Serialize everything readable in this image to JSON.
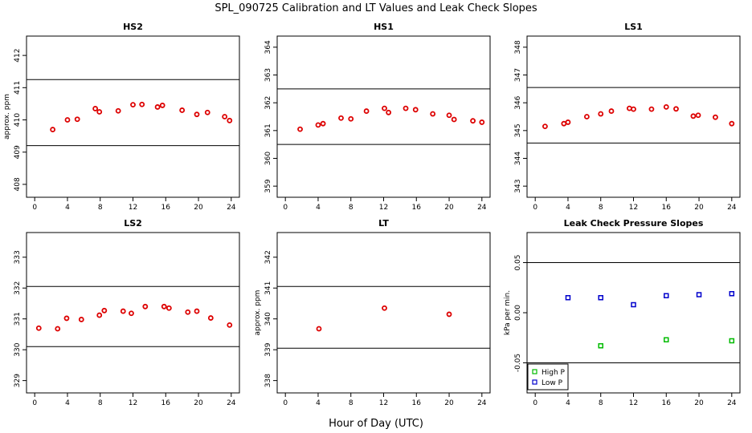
{
  "figure": {
    "title": "SPL_090725  Calibration and LT Values and Leak Check Slopes",
    "xlabel": "Hour of Day (UTC)"
  },
  "chart_data": [
    {
      "type": "scatter",
      "title": "HS2",
      "ylabel": "approx. ppm",
      "xlim": [
        -1,
        25
      ],
      "ylim": [
        407.6,
        412.6
      ],
      "xticks": [
        0,
        4,
        8,
        12,
        16,
        20,
        24
      ],
      "yticks": [
        408,
        409,
        410,
        411,
        412
      ],
      "hlines": [
        409.2,
        411.25
      ],
      "series": [
        {
          "color": "#dd0000",
          "marker": "circle",
          "x": [
            2.2,
            4,
            5.2,
            7.4,
            7.9,
            10.2,
            12,
            13.1,
            15,
            15.6,
            18,
            19.8,
            21.1,
            23.2,
            23.8
          ],
          "y": [
            409.7,
            410.0,
            410.02,
            410.35,
            410.25,
            410.28,
            410.47,
            410.48,
            410.4,
            410.45,
            410.3,
            410.17,
            410.23,
            410.1,
            409.98
          ]
        }
      ]
    },
    {
      "type": "scatter",
      "title": "HS1",
      "ylabel": "",
      "xlim": [
        -1,
        25
      ],
      "ylim": [
        358.6,
        364.4
      ],
      "xticks": [
        0,
        4,
        8,
        12,
        16,
        20,
        24
      ],
      "yticks": [
        359,
        360,
        361,
        362,
        363,
        364
      ],
      "hlines": [
        360.5,
        362.5
      ],
      "series": [
        {
          "color": "#dd0000",
          "marker": "circle",
          "x": [
            1.8,
            4,
            4.6,
            6.8,
            8,
            9.9,
            12.1,
            12.6,
            14.7,
            15.9,
            18,
            20,
            20.6,
            22.9,
            24
          ],
          "y": [
            361.05,
            361.2,
            361.25,
            361.45,
            361.42,
            361.7,
            361.8,
            361.65,
            361.8,
            361.75,
            361.6,
            361.55,
            361.4,
            361.35,
            361.3
          ]
        }
      ]
    },
    {
      "type": "scatter",
      "title": "LS1",
      "ylabel": "",
      "xlim": [
        -1,
        25
      ],
      "ylim": [
        342.6,
        348.4
      ],
      "xticks": [
        0,
        4,
        8,
        12,
        16,
        20,
        24
      ],
      "yticks": [
        343,
        344,
        345,
        346,
        347,
        348
      ],
      "hlines": [
        344.55,
        346.55
      ],
      "series": [
        {
          "color": "#dd0000",
          "marker": "circle",
          "x": [
            1.2,
            3.5,
            4,
            6.3,
            8,
            9.3,
            11.5,
            12,
            14.2,
            16,
            17.2,
            19.3,
            19.9,
            22,
            24
          ],
          "y": [
            345.15,
            345.25,
            345.3,
            345.5,
            345.6,
            345.7,
            345.8,
            345.77,
            345.77,
            345.85,
            345.78,
            345.52,
            345.55,
            345.48,
            345.25
          ]
        }
      ]
    },
    {
      "type": "scatter",
      "title": "LS2",
      "ylabel": "",
      "xlim": [
        -1,
        25
      ],
      "ylim": [
        328.6,
        333.8
      ],
      "xticks": [
        0,
        4,
        8,
        12,
        16,
        20,
        24
      ],
      "yticks": [
        329,
        330,
        331,
        332,
        333
      ],
      "hlines": [
        330.1,
        332.05
      ],
      "series": [
        {
          "color": "#dd0000",
          "marker": "circle",
          "x": [
            0.5,
            2.8,
            3.9,
            5.7,
            7.9,
            8.5,
            10.8,
            11.8,
            13.5,
            15.8,
            16.4,
            18.7,
            19.8,
            21.5,
            23.8
          ],
          "y": [
            330.7,
            330.68,
            331.02,
            330.98,
            331.12,
            331.27,
            331.25,
            331.18,
            331.4,
            331.4,
            331.35,
            331.22,
            331.25,
            331.03,
            330.8
          ]
        }
      ]
    },
    {
      "type": "scatter",
      "title": "LT",
      "ylabel": "approx. ppm",
      "xlim": [
        -1,
        25
      ],
      "ylim": [
        337.6,
        342.8
      ],
      "xticks": [
        0,
        4,
        8,
        12,
        16,
        20,
        24
      ],
      "yticks": [
        338,
        339,
        340,
        341,
        342
      ],
      "hlines": [
        339.05,
        341.05
      ],
      "series": [
        {
          "color": "#dd0000",
          "marker": "circle",
          "x": [
            4.1,
            12.1,
            20
          ],
          "y": [
            339.68,
            340.35,
            340.15
          ]
        }
      ]
    },
    {
      "type": "scatter",
      "title": "Leak Check Pressure Slopes",
      "ylabel": "kPa per min.",
      "xlim": [
        -1,
        25
      ],
      "ylim": [
        -0.08,
        0.08
      ],
      "xticks": [
        0,
        4,
        8,
        12,
        16,
        20,
        24
      ],
      "yticks": [
        -0.05,
        0.0,
        0.05
      ],
      "ytick_labels": [
        "-0.05",
        "0.00",
        "0.05"
      ],
      "hlines": [
        -0.05,
        0.05
      ],
      "legend": "bottom-left",
      "series": [
        {
          "name": "High P",
          "color": "#00bb00",
          "marker": "square",
          "x": [
            8,
            16,
            24
          ],
          "y": [
            -0.033,
            -0.027,
            -0.028
          ]
        },
        {
          "name": "Low P",
          "color": "#0000cc",
          "marker": "square",
          "x": [
            4,
            8,
            12,
            16,
            20,
            24
          ],
          "y": [
            0.015,
            0.015,
            0.008,
            0.017,
            0.018,
            0.019
          ]
        }
      ]
    }
  ]
}
